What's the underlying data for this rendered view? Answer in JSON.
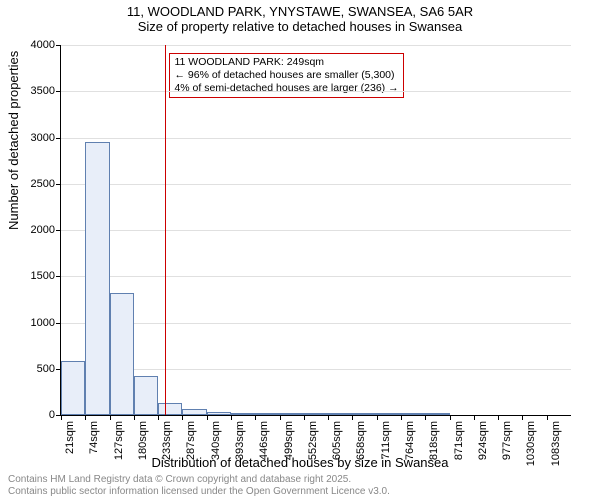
{
  "title_main": "11, WOODLAND PARK, YNYSTAWE, SWANSEA, SA6 5AR",
  "title_sub": "Size of property relative to detached houses in Swansea",
  "ylabel": "Number of detached properties",
  "xlabel": "Distribution of detached houses by size in Swansea",
  "footer_line1": "Contains HM Land Registry data © Crown copyright and database right 2025.",
  "footer_line2": "Contains public sector information licensed under the Open Government Licence v3.0.",
  "chart": {
    "type": "histogram",
    "background_color": "#ffffff",
    "grid_color": "#e0e0e0",
    "axis_color": "#000000",
    "bar_fill": "#e8eef9",
    "bar_border": "#6080b0",
    "ref_line_color": "#cc0000",
    "annotation_border": "#cc0000",
    "ylim": [
      0,
      4000
    ],
    "ytick_step": 500,
    "bin_start": 21,
    "bin_width": 53,
    "bins": [
      {
        "label": "21sqm",
        "count": 580
      },
      {
        "label": "74sqm",
        "count": 2950
      },
      {
        "label": "127sqm",
        "count": 1320
      },
      {
        "label": "180sqm",
        "count": 420
      },
      {
        "label": "233sqm",
        "count": 130
      },
      {
        "label": "287sqm",
        "count": 60
      },
      {
        "label": "340sqm",
        "count": 35
      },
      {
        "label": "393sqm",
        "count": 25
      },
      {
        "label": "446sqm",
        "count": 18
      },
      {
        "label": "499sqm",
        "count": 18
      },
      {
        "label": "552sqm",
        "count": 5
      },
      {
        "label": "605sqm",
        "count": 3
      },
      {
        "label": "658sqm",
        "count": 2
      },
      {
        "label": "711sqm",
        "count": 2
      },
      {
        "label": "764sqm",
        "count": 1
      },
      {
        "label": "818sqm",
        "count": 1
      },
      {
        "label": "871sqm",
        "count": 0
      },
      {
        "label": "924sqm",
        "count": 0
      },
      {
        "label": "977sqm",
        "count": 0
      },
      {
        "label": "1030sqm",
        "count": 0
      },
      {
        "label": "1083sqm",
        "count": 0
      }
    ],
    "reference_value": 249,
    "annotation": {
      "line1": "11 WOODLAND PARK: 249sqm",
      "line2": "← 96% of detached houses are smaller (5,300)",
      "line3": "4% of semi-detached houses are larger (236) →"
    },
    "label_fontsize": 13,
    "tick_fontsize": 11,
    "footer_color": "#888888"
  }
}
